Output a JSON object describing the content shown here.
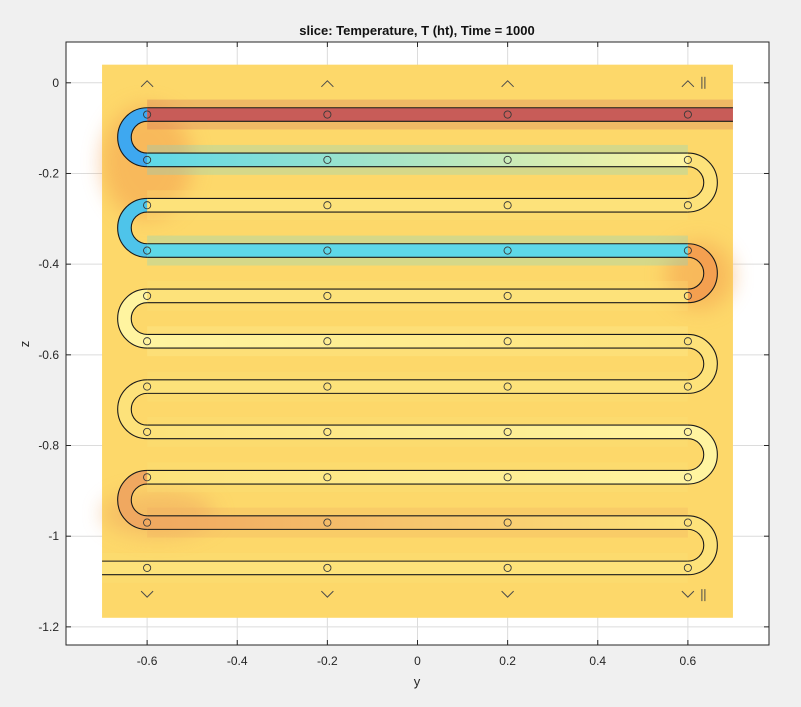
{
  "chart_data": {
    "type": "heatmap",
    "title": "slice: Temperature, T (ht), Time = 1000",
    "xlabel": "y",
    "ylabel": "z",
    "xlim": [
      -0.78,
      0.78
    ],
    "ylim": [
      -1.24,
      0.09
    ],
    "x_ticks": [
      -0.6,
      -0.4,
      -0.2,
      0,
      0.2,
      0.4,
      0.6
    ],
    "x_tick_labels": [
      "-0.6",
      "-0.4",
      "-0.2",
      "0",
      "0.2",
      "0.4",
      "0.6"
    ],
    "y_ticks": [
      0,
      -0.2,
      -0.4,
      -0.6,
      -0.8,
      -1,
      -1.2
    ],
    "y_tick_labels": [
      "0",
      "-0.2",
      "-0.4",
      "-0.6",
      "-0.8",
      "-1",
      "-1.2"
    ],
    "grid": true,
    "domain": {
      "y": [
        -0.7,
        0.7
      ],
      "z": [
        -1.18,
        0.04
      ]
    },
    "background_color": "#fdd86a",
    "colors": {
      "hot": "#c85c58",
      "warm": "#f4a050",
      "cool": "#5ed8e8",
      "cold": "#3ea8f0",
      "pale": "#fff4a0"
    },
    "tube_passes": [
      {
        "z": -0.07,
        "y_start": -0.6,
        "y_end": 0.7,
        "color": "#c85c58",
        "fade_to": "#c85c58"
      },
      {
        "z": -0.17,
        "y_start": -0.6,
        "y_end": 0.6,
        "color": "#5ed8e8",
        "fade_to": "#fff4a0"
      },
      {
        "z": -0.27,
        "y_start": -0.6,
        "y_end": 0.6,
        "color": "#fde27a",
        "fade_to": "#fde27a"
      },
      {
        "z": -0.37,
        "y_start": -0.6,
        "y_end": 0.6,
        "color": "#5ed8e8",
        "fade_to": "#5ed8e8"
      },
      {
        "z": -0.47,
        "y_start": -0.6,
        "y_end": 0.6,
        "color": "#fde27a",
        "fade_to": "#fde27a"
      },
      {
        "z": -0.57,
        "y_start": -0.6,
        "y_end": 0.6,
        "color": "#fff4a0",
        "fade_to": "#fde27a"
      },
      {
        "z": -0.67,
        "y_start": -0.6,
        "y_end": 0.6,
        "color": "#fde27a",
        "fade_to": "#fde27a"
      },
      {
        "z": -0.77,
        "y_start": -0.6,
        "y_end": 0.6,
        "color": "#fde27a",
        "fade_to": "#fff4a0"
      },
      {
        "z": -0.87,
        "y_start": -0.6,
        "y_end": 0.6,
        "color": "#fde27a",
        "fade_to": "#fff4a0"
      },
      {
        "z": -0.97,
        "y_start": -0.6,
        "y_end": 0.6,
        "color": "#f0a860",
        "fade_to": "#fde27a"
      },
      {
        "z": -1.07,
        "y_start": -0.7,
        "y_end": 0.6,
        "color": "#fde27a",
        "fade_to": "#fde27a"
      }
    ],
    "bends": [
      {
        "side": "left",
        "z_top": -0.07,
        "z_bottom": -0.17,
        "color": "#3ea8f0"
      },
      {
        "side": "right",
        "z_top": -0.17,
        "z_bottom": -0.27,
        "color": "#fde27a"
      },
      {
        "side": "left",
        "z_top": -0.27,
        "z_bottom": -0.37,
        "color": "#4ec4ea"
      },
      {
        "side": "right",
        "z_top": -0.37,
        "z_bottom": -0.47,
        "color": "#f4a050"
      },
      {
        "side": "left",
        "z_top": -0.47,
        "z_bottom": -0.57,
        "color": "#fff4a0"
      },
      {
        "side": "right",
        "z_top": -0.57,
        "z_bottom": -0.67,
        "color": "#fde27a"
      },
      {
        "side": "left",
        "z_top": -0.67,
        "z_bottom": -0.77,
        "color": "#fde27a"
      },
      {
        "side": "right",
        "z_top": -0.77,
        "z_bottom": -0.87,
        "color": "#fff4a0"
      },
      {
        "side": "left",
        "z_top": -0.87,
        "z_bottom": -0.97,
        "color": "#f0a860"
      },
      {
        "side": "right",
        "z_top": -0.97,
        "z_bottom": -1.07,
        "color": "#fde27a"
      }
    ],
    "glow_regions": [
      {
        "y": [
          -0.7,
          -0.5
        ],
        "z": [
          -0.3,
          -0.05
        ],
        "color": "#f4a050"
      },
      {
        "y": [
          0.55,
          0.7
        ],
        "z": [
          -0.5,
          -0.35
        ],
        "color": "#f4a050"
      },
      {
        "y": [
          -0.7,
          -0.45
        ],
        "z": [
          -1.0,
          -0.9
        ],
        "color": "#f0a860"
      }
    ],
    "marker_y": [
      -0.6,
      -0.2,
      0.2,
      0.6
    ],
    "arrow_z_top": 0.0,
    "arrow_z_bottom": -1.13
  }
}
